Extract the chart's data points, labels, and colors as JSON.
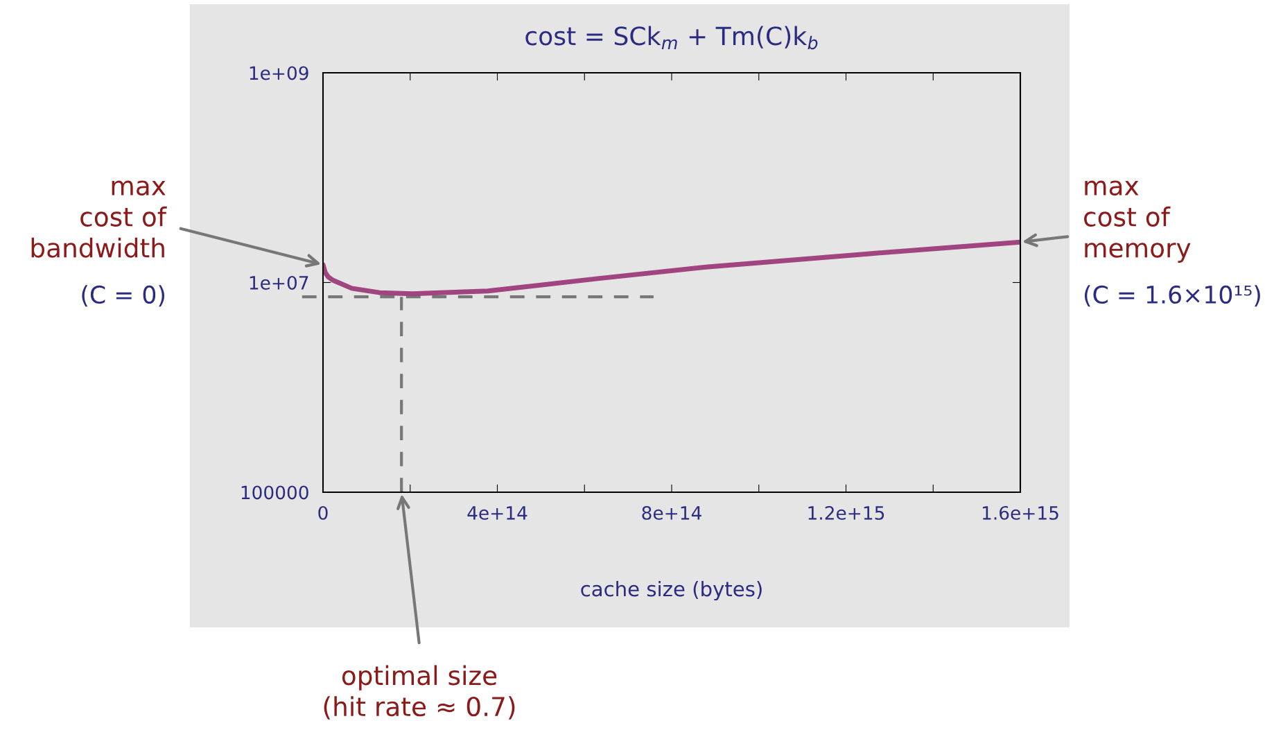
{
  "chart_data": {
    "type": "line",
    "title": "cost = SCk$_{m}$ + Tm(C)k$_{b}$",
    "xlabel": "cache size (bytes)",
    "log": "y",
    "grid": false,
    "marker": "none",
    "line_style": "solid",
    "xlim": [
      0,
      1600000000000000.0
    ],
    "ylim": [
      100000,
      1000000000.0
    ],
    "xticks": [
      0,
      {
        "value": 200000000000000.0,
        "label": null
      },
      {
        "value": 400000000000000.0,
        "label": "4e+14"
      },
      {
        "value": 600000000000000.0,
        "label": null
      },
      {
        "value": 800000000000000.0,
        "label": "8e+14"
      },
      {
        "value": 1000000000000000.0,
        "label": null
      },
      {
        "value": 1200000000000000.0,
        "label": "1.2e+15"
      },
      {
        "value": 1400000000000000.0,
        "label": null
      },
      {
        "value": 1600000000000000.0,
        "label": "1.6e+15"
      }
    ],
    "yticks": [
      100000,
      {
        "value": 10000000.0,
        "label": "1e+07"
      },
      {
        "value": 1000000000.0,
        "label": "1e+09"
      }
    ],
    "series": [
      {
        "color": "#a0457f",
        "x": [
          0,
          5000000000000.0,
          12000000000000.0,
          23000000000000.0,
          66000000000000.0,
          130000000000000.0,
          205000000000000.0,
          378000000000000.0,
          630000000000000.0,
          883000000000000.0,
          1259000000000000.0,
          1600000000000000.0
        ],
        "values": [
          14800000.0,
          12500000.0,
          11300000.0,
          10500000.0,
          8800000.0,
          8000000.0,
          7800000.0,
          8300000.0,
          10900000.0,
          14100000.0,
          18900000.0,
          24300000.0
        ]
      }
    ],
    "ref_lines": [
      {
        "axis": "y",
        "value": 7300000.0,
        "color": "#777777",
        "line_style": "dashed"
      },
      {
        "axis": "x",
        "value": 180000000000000.0,
        "color": "#777777",
        "line_style": "dashed"
      }
    ],
    "annotations": [
      {
        "text": "max\ncost of\nbandwidth",
        "x": 0,
        "y": 14800000.0
      },
      "(C = 0)",
      {
        "text": "max\ncost of\nmemory",
        "x": 1600000000000000.0,
        "y": 24300000.0
      },
      "(C = 1.6×10¹⁵)",
      "optimal size\n(hit rate ≈ 0.7)"
    ]
  }
}
